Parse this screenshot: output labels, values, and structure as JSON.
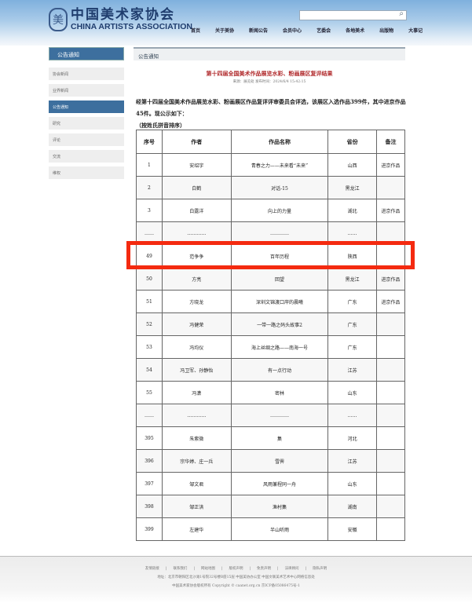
{
  "header": {
    "logo_cn": "中国美术家协会",
    "logo_en": "CHINA ARTISTS ASSOCIATION",
    "search_placeholder": "",
    "nav": [
      "首页",
      "关于美协",
      "新闻公告",
      "会员中心",
      "艺委会",
      "各地美术",
      "出版物",
      "大事记"
    ]
  },
  "sidebar": {
    "title": "公告通知",
    "items": [
      {
        "label": "协会新闻"
      },
      {
        "label": "业界新闻"
      },
      {
        "label": "公告通知",
        "active": true
      },
      {
        "label": "研究"
      },
      {
        "label": "评论"
      },
      {
        "label": "交流"
      },
      {
        "label": "维权"
      }
    ]
  },
  "main": {
    "section": "公告通知",
    "title": "第十四届全国美术作品展览水彩、粉画展区复评结果",
    "meta": "来源：展览处 发布时间：2024/6/4 15:42:15",
    "intro": "经第十四届全国美术作品展览水彩、粉画展区作品复评评审委员会评选，该展区入选作品399件，其中进京作品45件。现公示如下：",
    "note": "（按姓氏拼音排序）",
    "columns": [
      "序号",
      "作者",
      "作品名称",
      "省份",
      "备注"
    ],
    "rows": [
      [
        "1",
        "安绍宇",
        "青春之力——未来看“未来”",
        "山西",
        "进京作品"
      ],
      [
        "2",
        "白鹤",
        "对话-15",
        "黑龙江",
        ""
      ],
      [
        "3",
        "白露洋",
        "向上的力量",
        "湖北",
        "进京作品"
      ],
      [
        "……",
        "…………",
        "…………",
        "……",
        ""
      ],
      [
        "49",
        "范争争",
        "百年历程",
        "陕西",
        ""
      ],
      [
        "50",
        "方亮",
        "回望",
        "黑龙江",
        "进京作品"
      ],
      [
        "51",
        "方晓龙",
        "深圳文锦渡口岸的晨曦",
        "广东",
        "进京作品"
      ],
      [
        "52",
        "冯健荣",
        "一带一路之码头故事2",
        "广东",
        ""
      ],
      [
        "53",
        "冯均仪",
        "海上丝绸之路——南海一号",
        "广东",
        ""
      ],
      [
        "54",
        "冯卫军、孙静怡",
        "有一点行动",
        "江苏",
        ""
      ],
      [
        "55",
        "冯潇",
        "密林",
        "山东",
        ""
      ],
      [
        "……",
        "…………",
        "…………",
        "……",
        ""
      ],
      [
        "395",
        "朱紫微",
        "集",
        "河北",
        ""
      ],
      [
        "396",
        "宗华婷、庄一兵",
        "雪霁",
        "江苏",
        ""
      ],
      [
        "397",
        "邹文君",
        "风雨兼程同一舟",
        "山东",
        ""
      ],
      [
        "398",
        "邹正洪",
        "渔村集",
        "湖南",
        ""
      ],
      [
        "399",
        "左建华",
        "半山听雨",
        "安徽",
        ""
      ]
    ],
    "highlight_color": "#f42a10"
  },
  "footer": {
    "links": [
      "友情链接",
      "联系我们",
      "网站地图",
      "版权声明",
      "免责声明",
      "法律顾问",
      "隐私声明"
    ],
    "address": "地址：北京市朝阳区北沙滩1号院32号楼B座15层 中国美协办公室 中国文联美术艺术中心网络信息处",
    "copyright": "中国美术家协会版权所有 Copyright © caanet.org.cn 京ICP备05086475号-1"
  }
}
